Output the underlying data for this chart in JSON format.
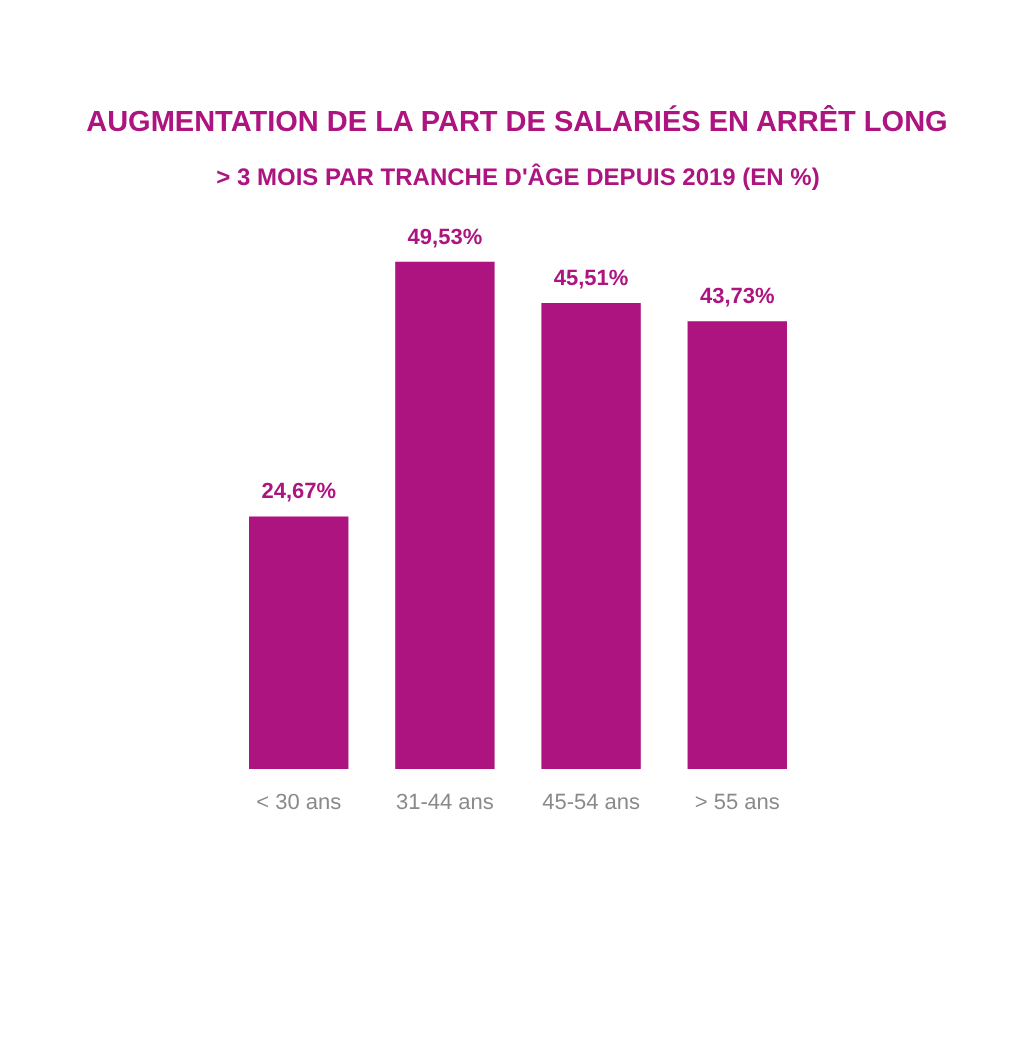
{
  "chart_data": {
    "type": "bar",
    "title": "AUGMENTATION DE LA PART DE SALARIÉS EN ARRÊT LONG",
    "subtitle": "> 3 MOIS PAR TRANCHE D'ÂGE DEPUIS 2019 (EN %)",
    "categories": [
      "< 30 ans",
      "31-44 ans",
      "45-54 ans",
      "> 55 ans"
    ],
    "values": [
      24.67,
      49.53,
      45.51,
      43.73
    ],
    "value_labels": [
      "24,67%",
      "49,53%",
      "45,51%",
      "43,73%"
    ],
    "color": "#ad1480",
    "grid": false
  }
}
